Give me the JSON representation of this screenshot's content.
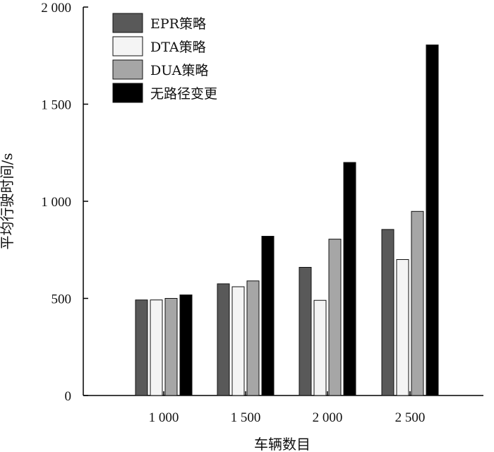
{
  "chart_data": {
    "type": "bar",
    "title": "",
    "xlabel": "车辆数目",
    "ylabel": "平均行驶时间/s",
    "categories": [
      "1 000",
      "1 500",
      "2 000",
      "2 500"
    ],
    "ylim": [
      0,
      2000
    ],
    "yticks": [
      {
        "value": 0,
        "label": "0"
      },
      {
        "value": 500,
        "label": "500"
      },
      {
        "value": 1000,
        "label": "1 000"
      },
      {
        "value": 1500,
        "label": "1 500"
      },
      {
        "value": 2000,
        "label": "2 000"
      }
    ],
    "grid": false,
    "legend_position": "top-left",
    "series": [
      {
        "name": "EPR策略",
        "color": "#595959",
        "values": [
          492,
          575,
          660,
          855
        ]
      },
      {
        "name": "DTA策略",
        "color": "#f4f4f4",
        "values": [
          492,
          560,
          490,
          700
        ]
      },
      {
        "name": "DUA策略",
        "color": "#a6a6a6",
        "values": [
          500,
          590,
          805,
          948
        ]
      },
      {
        "name": "无路径变更",
        "color": "#000000",
        "values": [
          518,
          820,
          1200,
          1805
        ]
      }
    ]
  }
}
